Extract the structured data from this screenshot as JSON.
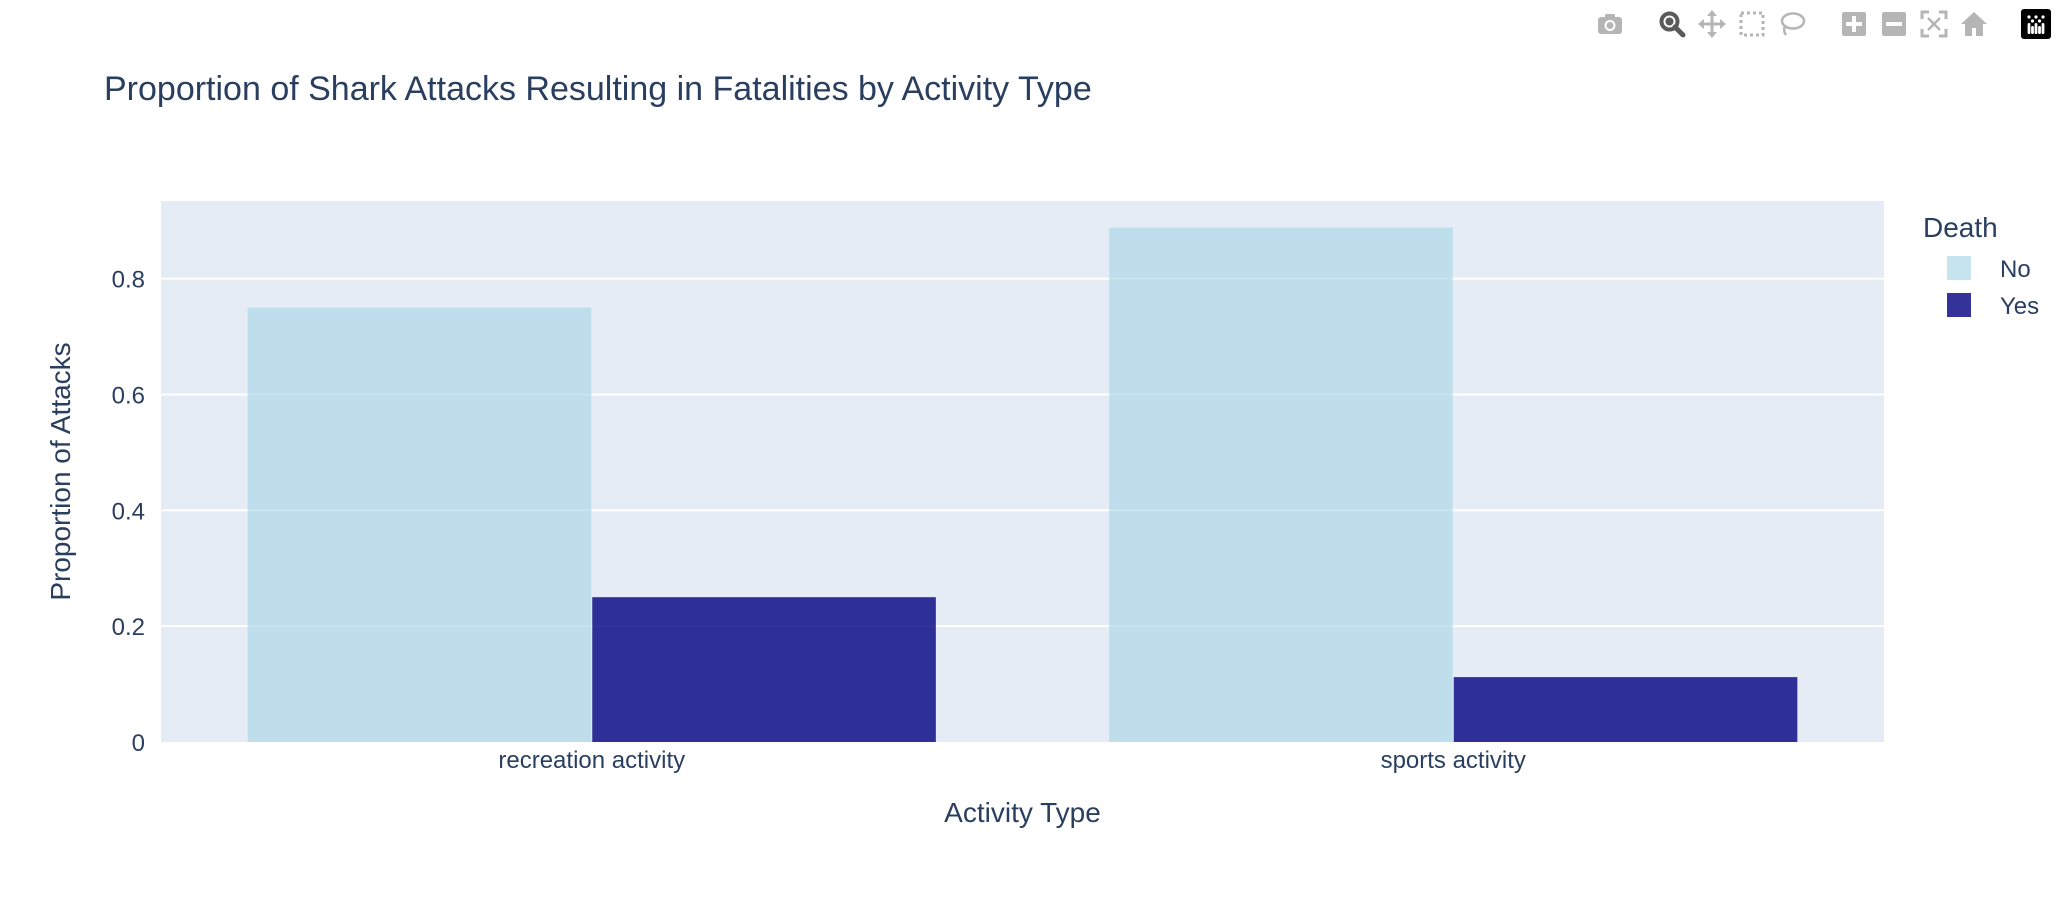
{
  "chart_data": {
    "type": "bar",
    "barmode": "group",
    "title": "Proportion of Shark Attacks Resulting in Fatalities by Activity Type",
    "xlabel": "Activity Type",
    "ylabel": "Proportion of Attacks",
    "categories": [
      "recreation activity",
      "sports activity"
    ],
    "series": [
      {
        "name": "No",
        "color": "#add8e6",
        "opacity": 0.7,
        "values": [
          0.75,
          0.888
        ]
      },
      {
        "name": "Yes",
        "color": "#000080",
        "opacity": 0.8,
        "values": [
          0.25,
          0.112
        ]
      }
    ],
    "ylim": [
      0,
      0.934
    ],
    "yticks": [
      0,
      0.2,
      0.4,
      0.6,
      0.8
    ],
    "ytick_labels": [
      "0",
      "0.2",
      "0.4",
      "0.6",
      "0.8"
    ],
    "grid": true,
    "legend": {
      "title": "Death",
      "placement": "top-right"
    },
    "plot_bgcolor": "#e5ecf6"
  },
  "modebar": {
    "icons": [
      "camera-icon",
      "zoom-icon",
      "pan-icon",
      "box-select-icon",
      "lasso-select-icon",
      "zoom-in-icon",
      "zoom-out-icon",
      "autoscale-icon",
      "reset-axes-icon",
      "plotly-logo-icon"
    ]
  }
}
